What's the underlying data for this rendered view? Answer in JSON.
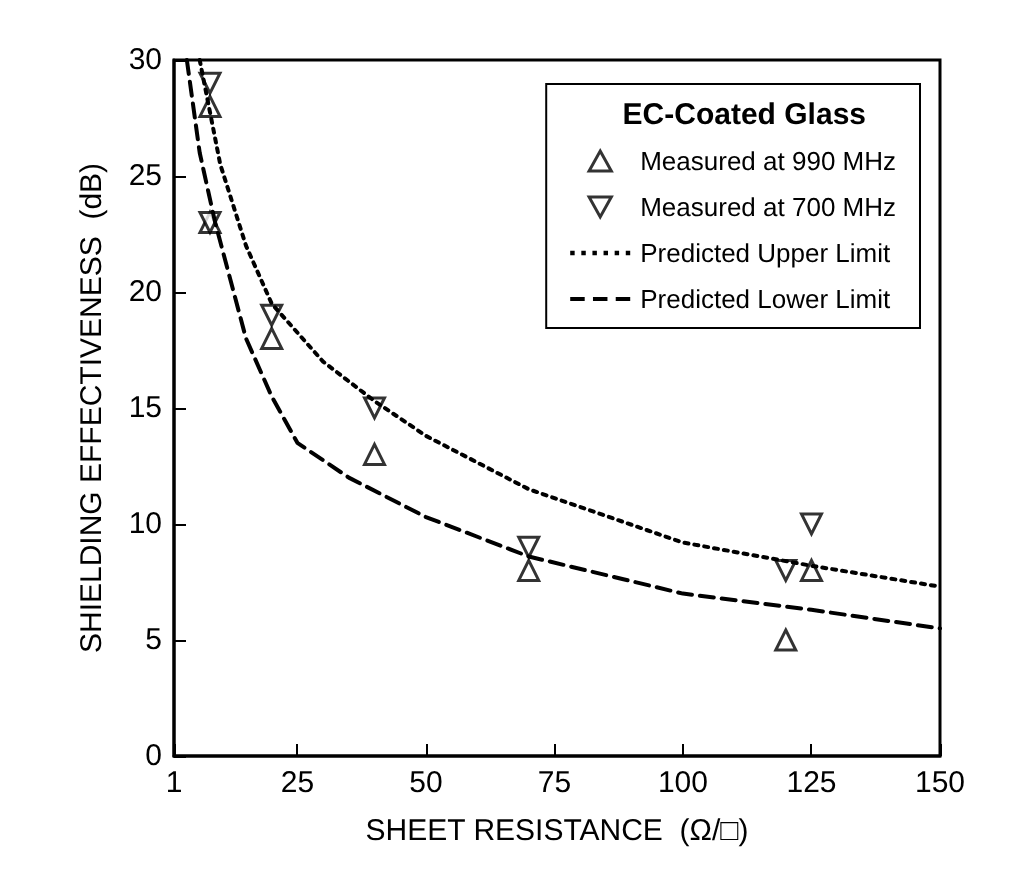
{
  "chart_data": {
    "type": "scatter",
    "xlabel": "SHEET RESISTANCE  (Ω/□)",
    "ylabel": "SHIELDING EFFECTIVENESS  (dB)",
    "legend_title": "EC-Coated Glass",
    "xlim": [
      1,
      150
    ],
    "xticks": [
      1,
      25,
      50,
      75,
      100,
      125,
      150
    ],
    "ylim": [
      0,
      30
    ],
    "yticks": [
      0,
      5,
      10,
      15,
      20,
      25,
      30
    ],
    "grid": false,
    "legend": "top right",
    "series": [
      {
        "name": "Measured at 990 MHz",
        "type": "scatter",
        "marker": "triangle",
        "color": "#000000",
        "x": [
          8,
          8,
          20,
          40,
          70,
          120,
          125
        ],
        "values": [
          28,
          23,
          18,
          13,
          8,
          5,
          8
        ]
      },
      {
        "name": "Measured at 700 MHz",
        "type": "scatter",
        "marker": "triangle-down",
        "color": "#000000",
        "x": [
          8,
          8,
          20,
          40,
          70,
          120,
          125
        ],
        "values": [
          29,
          23,
          19,
          15,
          9,
          8,
          10
        ]
      },
      {
        "name": "Predicted Upper Limit",
        "type": "line",
        "line_style": "dotted",
        "marker": "none",
        "color": "#000000",
        "x": [
          6,
          10,
          15,
          20,
          30,
          40,
          50,
          70,
          100,
          125,
          150
        ],
        "values": [
          30,
          25.5,
          22,
          19.5,
          17,
          15.3,
          13.8,
          11.5,
          9.2,
          8.2,
          7.3
        ]
      },
      {
        "name": "Predicted Lower Limit",
        "type": "line",
        "line_style": "dashed",
        "marker": "none",
        "color": "#000000",
        "x": [
          3.5,
          6,
          9,
          15,
          20,
          25,
          35,
          50,
          70,
          100,
          125,
          150
        ],
        "values": [
          30,
          26,
          23,
          18,
          15.5,
          13.5,
          12,
          10.3,
          8.6,
          7,
          6.3,
          5.5
        ]
      }
    ]
  }
}
